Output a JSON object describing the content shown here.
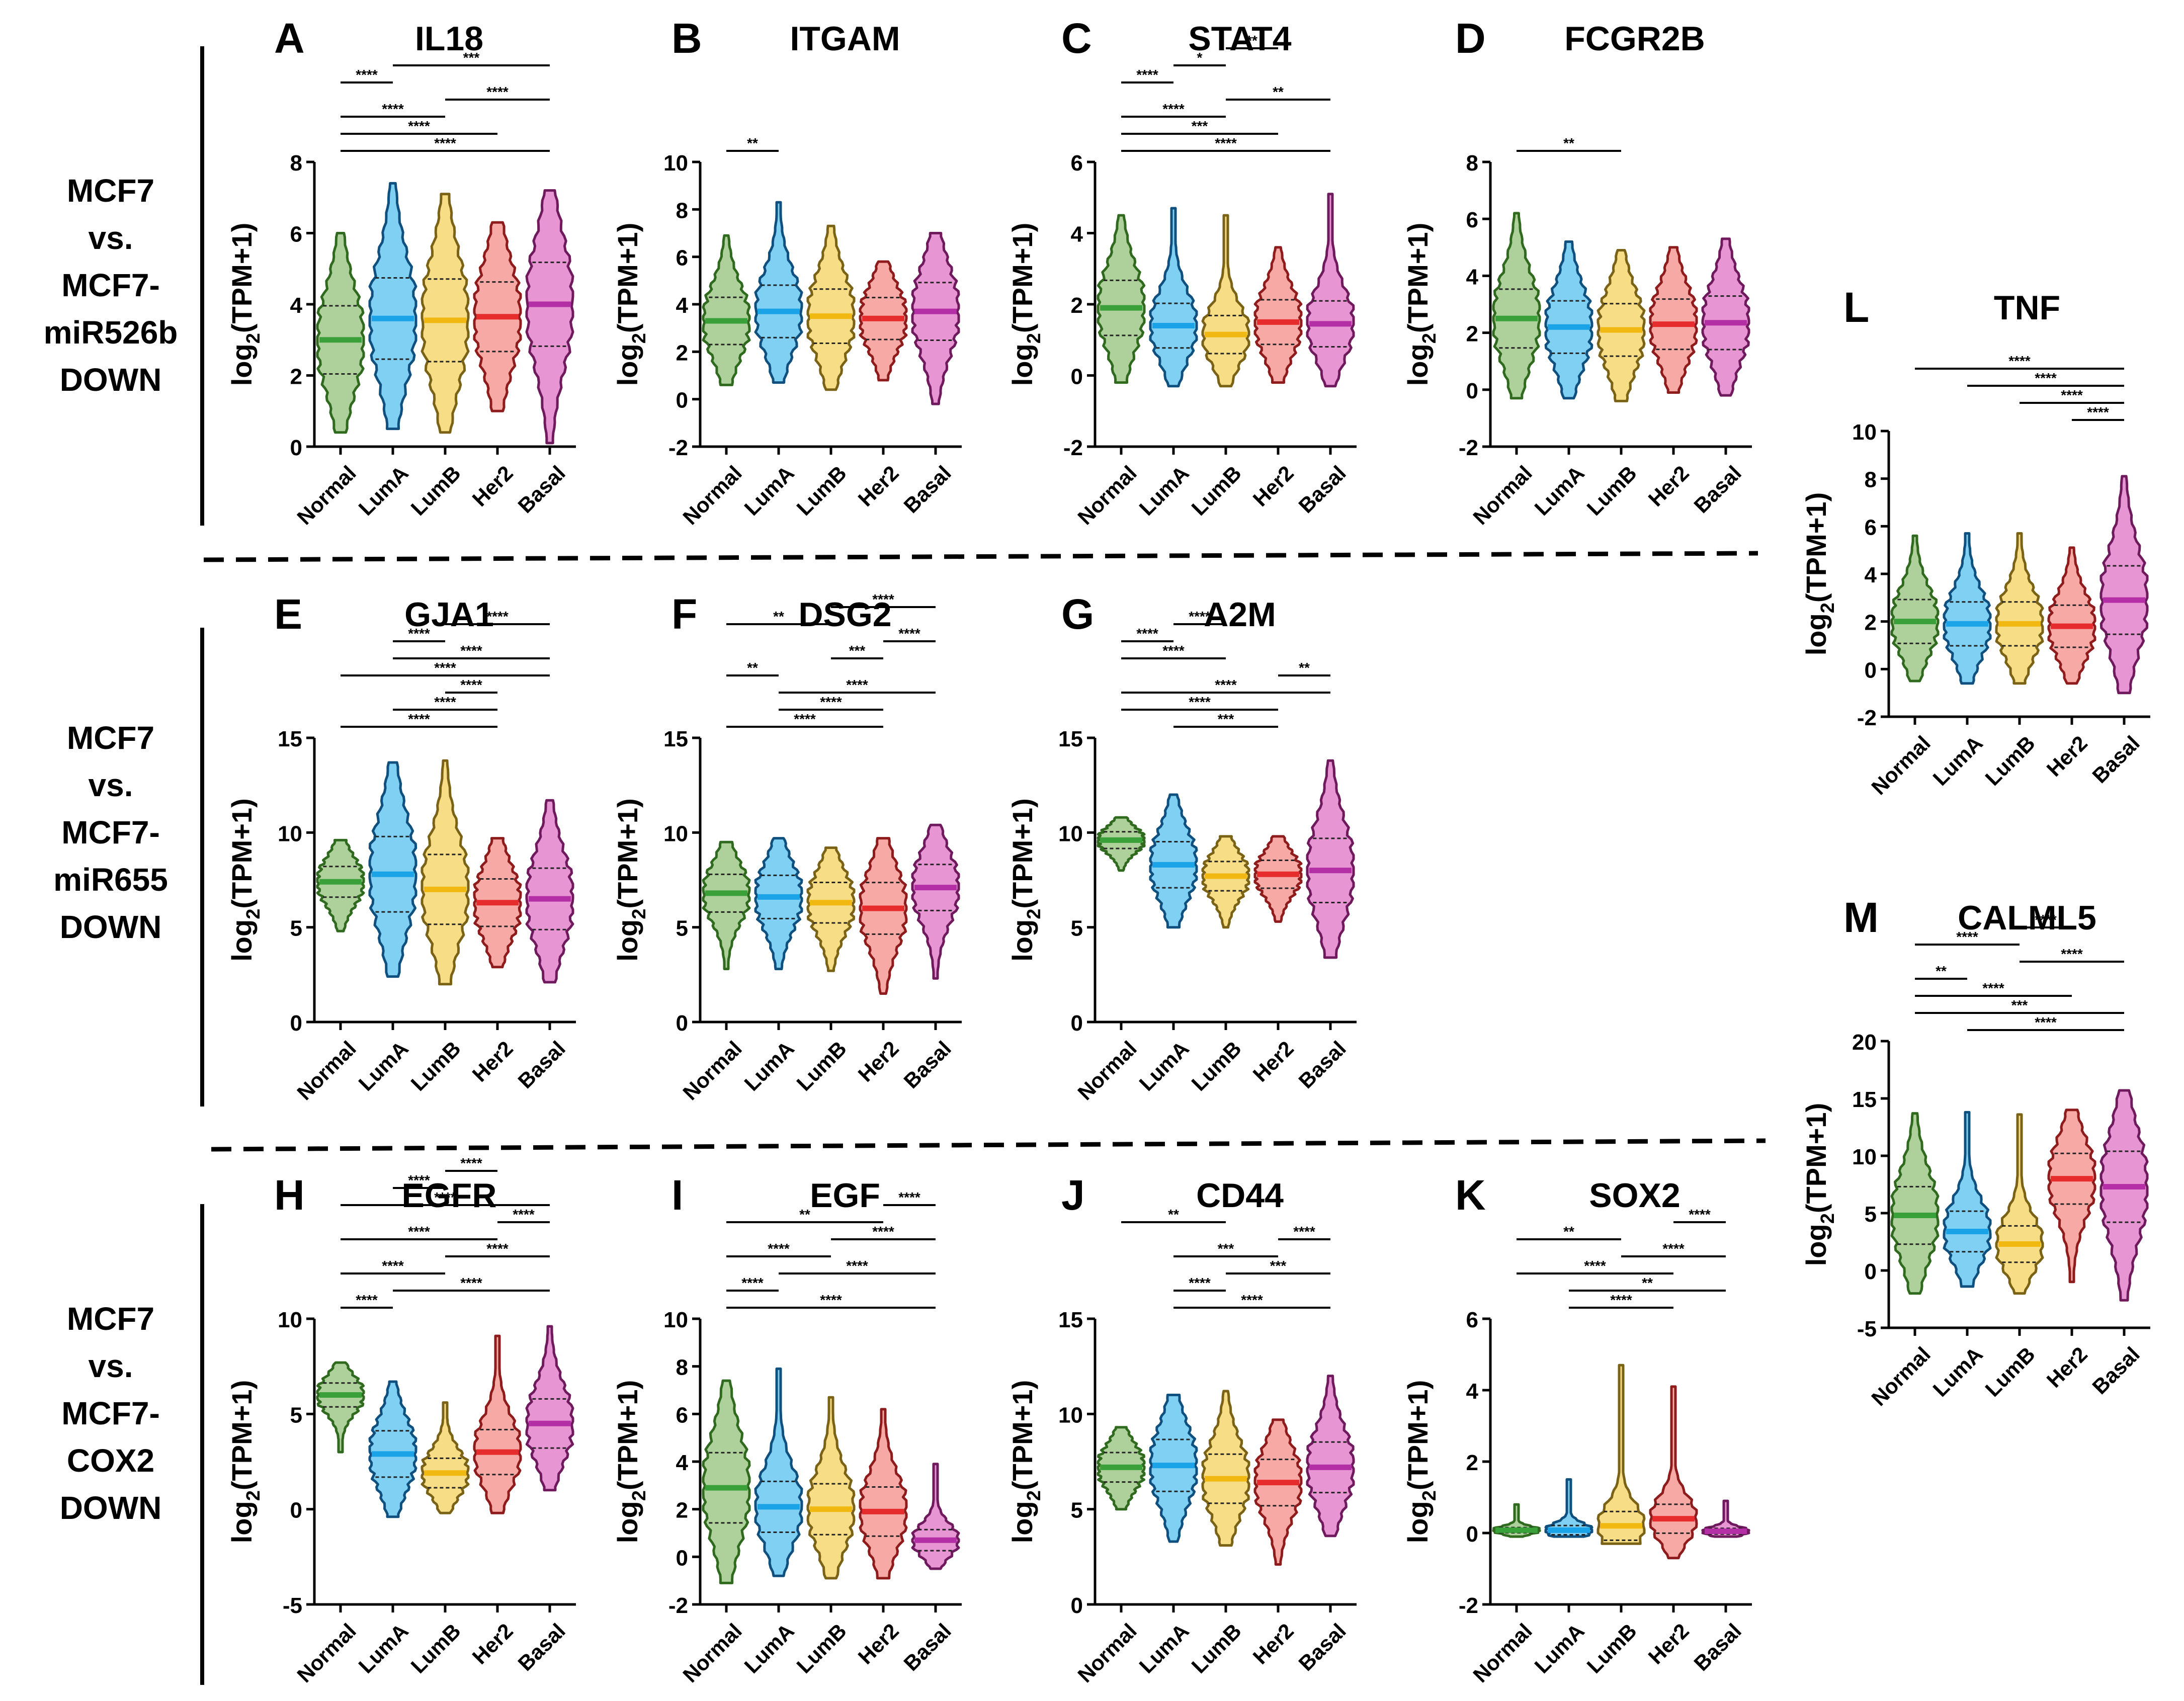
{
  "categories": [
    "Normal",
    "LumA",
    "LumB",
    "Her2",
    "Basal"
  ],
  "y_label": "log2(TPM+1)",
  "colors": {
    "Normal": {
      "fill": "#aed09a",
      "stroke": "#2f6a1f",
      "median": "#3aa13a"
    },
    "LumA": {
      "fill": "#7fd0f2",
      "stroke": "#10507f",
      "median": "#1aa3e6"
    },
    "LumB": {
      "fill": "#f7de86",
      "stroke": "#7a6216",
      "median": "#f0b810"
    },
    "Her2": {
      "fill": "#f7a9a5",
      "stroke": "#8e1c1c",
      "median": "#e62c2c"
    },
    "Basal": {
      "fill": "#e796d3",
      "stroke": "#701a5e",
      "median": "#b42ea5"
    }
  },
  "row_labels": [
    {
      "lines": [
        "MCF7",
        "vs.",
        "MCF7-",
        "miR526b",
        "DOWN"
      ]
    },
    {
      "lines": [
        "MCF7",
        "vs.",
        "MCF7-",
        "miR655",
        "DOWN"
      ]
    },
    {
      "lines": [
        "MCF7",
        "vs.",
        "MCF7-",
        "COX2",
        "DOWN"
      ]
    }
  ],
  "chart_data": [
    {
      "type": "violin",
      "letter": "A",
      "title": "IL18",
      "ylim": [
        0,
        8
      ],
      "yticks": [
        0,
        2,
        4,
        6,
        8
      ],
      "medians": [
        3.0,
        3.6,
        3.55,
        3.65,
        4.0
      ],
      "ranges": [
        [
          0.4,
          6.0
        ],
        [
          0.5,
          7.4
        ],
        [
          0.4,
          7.1
        ],
        [
          1.0,
          6.3
        ],
        [
          0.1,
          7.2
        ]
      ],
      "significance": [
        {
          "i": 0,
          "j": 4,
          "label": "****"
        },
        {
          "i": 0,
          "j": 3,
          "label": "****"
        },
        {
          "i": 0,
          "j": 2,
          "label": "****"
        },
        {
          "i": 2,
          "j": 4,
          "label": "****"
        },
        {
          "i": 0,
          "j": 1,
          "label": "****"
        },
        {
          "i": 1,
          "j": 4,
          "label": "***"
        }
      ]
    },
    {
      "type": "violin",
      "letter": "B",
      "title": "ITGAM",
      "ylim": [
        -2,
        10
      ],
      "yticks": [
        -2,
        0,
        2,
        4,
        6,
        8,
        10
      ],
      "medians": [
        3.3,
        3.7,
        3.5,
        3.4,
        3.7
      ],
      "ranges": [
        [
          0.6,
          6.9
        ],
        [
          0.7,
          8.3
        ],
        [
          0.4,
          7.3
        ],
        [
          0.8,
          5.8
        ],
        [
          -0.2,
          7.0
        ]
      ],
      "significance": [
        {
          "i": 0,
          "j": 1,
          "label": "**"
        }
      ]
    },
    {
      "type": "violin",
      "letter": "C",
      "title": "STAT4",
      "ylim": [
        -2,
        6
      ],
      "yticks": [
        -2,
        0,
        2,
        4,
        6
      ],
      "medians": [
        1.9,
        1.4,
        1.15,
        1.5,
        1.45
      ],
      "ranges": [
        [
          -0.2,
          4.5
        ],
        [
          -0.3,
          4.7
        ],
        [
          -0.3,
          4.5
        ],
        [
          -0.2,
          3.6
        ],
        [
          -0.3,
          5.1
        ]
      ],
      "significance": [
        {
          "i": 0,
          "j": 4,
          "label": "****"
        },
        {
          "i": 0,
          "j": 3,
          "label": "***"
        },
        {
          "i": 0,
          "j": 2,
          "label": "****"
        },
        {
          "i": 2,
          "j": 4,
          "label": "**"
        },
        {
          "i": 0,
          "j": 1,
          "label": "****"
        },
        {
          "i": 1,
          "j": 2,
          "label": "*"
        },
        {
          "i": 2,
          "j": 3,
          "label": "**"
        }
      ]
    },
    {
      "type": "violin",
      "letter": "D",
      "title": "FCGR2B",
      "ylim": [
        -2,
        8
      ],
      "yticks": [
        -2,
        0,
        2,
        4,
        6,
        8
      ],
      "medians": [
        2.5,
        2.2,
        2.1,
        2.3,
        2.35
      ],
      "ranges": [
        [
          -0.3,
          6.2
        ],
        [
          -0.3,
          5.2
        ],
        [
          -0.4,
          4.9
        ],
        [
          -0.1,
          5.0
        ],
        [
          -0.2,
          5.3
        ]
      ],
      "significance": [
        {
          "i": 0,
          "j": 2,
          "label": "**"
        }
      ]
    },
    {
      "type": "violin",
      "letter": "E",
      "title": "GJA1",
      "ylim": [
        0,
        15
      ],
      "yticks": [
        0,
        5,
        10,
        15
      ],
      "medians": [
        7.4,
        7.8,
        7.0,
        6.3,
        6.5
      ],
      "ranges": [
        [
          4.8,
          9.6
        ],
        [
          2.4,
          13.7
        ],
        [
          2.0,
          13.8
        ],
        [
          2.9,
          9.7
        ],
        [
          2.1,
          11.7
        ]
      ],
      "significance": [
        {
          "i": 0,
          "j": 3,
          "label": "****"
        },
        {
          "i": 1,
          "j": 3,
          "label": "****"
        },
        {
          "i": 2,
          "j": 3,
          "label": "****"
        },
        {
          "i": 0,
          "j": 4,
          "label": "****"
        },
        {
          "i": 1,
          "j": 4,
          "label": "****"
        },
        {
          "i": 1,
          "j": 2,
          "label": "****"
        },
        {
          "i": 2,
          "j": 4,
          "label": "****"
        }
      ]
    },
    {
      "type": "violin",
      "letter": "F",
      "title": "DSG2",
      "ylim": [
        0,
        15
      ],
      "yticks": [
        0,
        5,
        10,
        15
      ],
      "medians": [
        6.8,
        6.6,
        6.3,
        6.0,
        7.1
      ],
      "ranges": [
        [
          2.8,
          9.5
        ],
        [
          2.8,
          9.7
        ],
        [
          2.7,
          9.2
        ],
        [
          1.5,
          9.7
        ],
        [
          2.3,
          10.4
        ]
      ],
      "significance": [
        {
          "i": 0,
          "j": 3,
          "label": "****"
        },
        {
          "i": 1,
          "j": 3,
          "label": "****"
        },
        {
          "i": 1,
          "j": 4,
          "label": "****"
        },
        {
          "i": 0,
          "j": 1,
          "label": "**"
        },
        {
          "i": 2,
          "j": 3,
          "label": "***"
        },
        {
          "i": 3,
          "j": 4,
          "label": "****"
        },
        {
          "i": 0,
          "j": 2,
          "label": "**"
        },
        {
          "i": 2,
          "j": 4,
          "label": "****"
        }
      ]
    },
    {
      "type": "violin",
      "letter": "G",
      "title": "A2M",
      "ylim": [
        0,
        15
      ],
      "yticks": [
        0,
        5,
        10,
        15
      ],
      "medians": [
        9.6,
        8.3,
        7.7,
        7.8,
        8.0
      ],
      "ranges": [
        [
          8.0,
          10.8
        ],
        [
          5.0,
          12.0
        ],
        [
          5.0,
          9.8
        ],
        [
          5.3,
          9.8
        ],
        [
          3.4,
          13.8
        ]
      ],
      "significance": [
        {
          "i": 1,
          "j": 3,
          "label": "***"
        },
        {
          "i": 0,
          "j": 3,
          "label": "****"
        },
        {
          "i": 0,
          "j": 4,
          "label": "****"
        },
        {
          "i": 3,
          "j": 4,
          "label": "**"
        },
        {
          "i": 0,
          "j": 2,
          "label": "****"
        },
        {
          "i": 0,
          "j": 1,
          "label": "****"
        },
        {
          "i": 1,
          "j": 2,
          "label": "****"
        }
      ]
    },
    {
      "type": "violin",
      "letter": "H",
      "title": "EGFR",
      "ylim": [
        -5,
        10
      ],
      "yticks": [
        -5,
        0,
        5,
        10
      ],
      "medians": [
        6.0,
        2.9,
        1.9,
        3.0,
        4.5
      ],
      "ranges": [
        [
          3.0,
          7.7
        ],
        [
          -0.4,
          6.7
        ],
        [
          -0.2,
          5.6
        ],
        [
          -0.2,
          9.1
        ],
        [
          1.0,
          9.6
        ]
      ],
      "significance": [
        {
          "i": 0,
          "j": 1,
          "label": "****"
        },
        {
          "i": 1,
          "j": 4,
          "label": "****"
        },
        {
          "i": 0,
          "j": 2,
          "label": "****"
        },
        {
          "i": 2,
          "j": 4,
          "label": "****"
        },
        {
          "i": 0,
          "j": 3,
          "label": "****"
        },
        {
          "i": 3,
          "j": 4,
          "label": "****"
        },
        {
          "i": 0,
          "j": 4,
          "label": "****"
        },
        {
          "i": 1,
          "j": 2,
          "label": "****"
        },
        {
          "i": 2,
          "j": 3,
          "label": "****"
        }
      ]
    },
    {
      "type": "violin",
      "letter": "I",
      "title": "EGF",
      "ylim": [
        -2,
        10
      ],
      "yticks": [
        -2,
        0,
        2,
        4,
        6,
        8,
        10
      ],
      "medians": [
        2.9,
        2.1,
        2.0,
        1.9,
        0.7
      ],
      "ranges": [
        [
          -1.1,
          7.4
        ],
        [
          -0.8,
          7.9
        ],
        [
          -0.9,
          6.7
        ],
        [
          -0.9,
          6.2
        ],
        [
          -0.5,
          3.9
        ]
      ],
      "significance": [
        {
          "i": 0,
          "j": 4,
          "label": "****"
        },
        {
          "i": 0,
          "j": 1,
          "label": "****"
        },
        {
          "i": 1,
          "j": 4,
          "label": "****"
        },
        {
          "i": 0,
          "j": 2,
          "label": "****"
        },
        {
          "i": 2,
          "j": 4,
          "label": "****"
        },
        {
          "i": 0,
          "j": 3,
          "label": "**"
        },
        {
          "i": 3,
          "j": 4,
          "label": "****"
        }
      ]
    },
    {
      "type": "violin",
      "letter": "J",
      "title": "CD44",
      "ylim": [
        0,
        15
      ],
      "yticks": [
        0,
        5,
        10,
        15
      ],
      "medians": [
        7.2,
        7.3,
        6.6,
        6.4,
        7.2
      ],
      "ranges": [
        [
          5.0,
          9.3
        ],
        [
          3.3,
          11.0
        ],
        [
          3.1,
          11.2
        ],
        [
          2.1,
          9.7
        ],
        [
          3.6,
          12.0
        ]
      ],
      "significance": [
        {
          "i": 1,
          "j": 4,
          "label": "****"
        },
        {
          "i": 1,
          "j": 2,
          "label": "****"
        },
        {
          "i": 2,
          "j": 4,
          "label": "***"
        },
        {
          "i": 1,
          "j": 3,
          "label": "***"
        },
        {
          "i": 3,
          "j": 4,
          "label": "****"
        },
        {
          "i": 0,
          "j": 2,
          "label": "**"
        }
      ]
    },
    {
      "type": "violin",
      "letter": "K",
      "title": "SOX2",
      "ylim": [
        -2,
        6
      ],
      "yticks": [
        -2,
        0,
        2,
        4,
        6
      ],
      "medians": [
        0.08,
        0.08,
        0.2,
        0.4,
        0.05
      ],
      "ranges": [
        [
          -0.1,
          0.8
        ],
        [
          -0.1,
          1.5
        ],
        [
          -0.3,
          4.7
        ],
        [
          -0.7,
          4.1
        ],
        [
          -0.1,
          0.9
        ]
      ],
      "significance": [
        {
          "i": 1,
          "j": 3,
          "label": "****"
        },
        {
          "i": 1,
          "j": 4,
          "label": "**"
        },
        {
          "i": 0,
          "j": 3,
          "label": "****"
        },
        {
          "i": 2,
          "j": 4,
          "label": "****"
        },
        {
          "i": 0,
          "j": 2,
          "label": "**"
        },
        {
          "i": 3,
          "j": 4,
          "label": "****"
        }
      ]
    },
    {
      "type": "violin",
      "letter": "L",
      "title": "TNF",
      "ylim": [
        -2,
        10
      ],
      "yticks": [
        -2,
        0,
        2,
        4,
        6,
        8,
        10
      ],
      "medians": [
        2.0,
        1.9,
        1.9,
        1.8,
        2.9
      ],
      "ranges": [
        [
          -0.5,
          5.6
        ],
        [
          -0.6,
          5.7
        ],
        [
          -0.6,
          5.7
        ],
        [
          -0.6,
          5.1
        ],
        [
          -1.0,
          8.1
        ]
      ],
      "significance": [
        {
          "i": 3,
          "j": 4,
          "label": "****"
        },
        {
          "i": 2,
          "j": 4,
          "label": "****"
        },
        {
          "i": 1,
          "j": 4,
          "label": "****"
        },
        {
          "i": 0,
          "j": 4,
          "label": "****"
        }
      ]
    },
    {
      "type": "violin",
      "letter": "M",
      "title": "CALML5",
      "ylim": [
        -5,
        20
      ],
      "yticks": [
        -5,
        0,
        5,
        10,
        15,
        20
      ],
      "medians": [
        4.8,
        3.4,
        2.3,
        8.0,
        7.3
      ],
      "ranges": [
        [
          -2.0,
          13.7
        ],
        [
          -1.4,
          13.8
        ],
        [
          -2.0,
          13.6
        ],
        [
          -1.0,
          14.0
        ],
        [
          -2.6,
          15.7
        ]
      ],
      "significance": [
        {
          "i": 1,
          "j": 4,
          "label": "****"
        },
        {
          "i": 0,
          "j": 4,
          "label": "***"
        },
        {
          "i": 0,
          "j": 3,
          "label": "****"
        },
        {
          "i": 0,
          "j": 1,
          "label": "**"
        },
        {
          "i": 2,
          "j": 4,
          "label": "****"
        },
        {
          "i": 0,
          "j": 2,
          "label": "****"
        },
        {
          "i": 2,
          "j": 3,
          "label": "****"
        }
      ]
    }
  ]
}
